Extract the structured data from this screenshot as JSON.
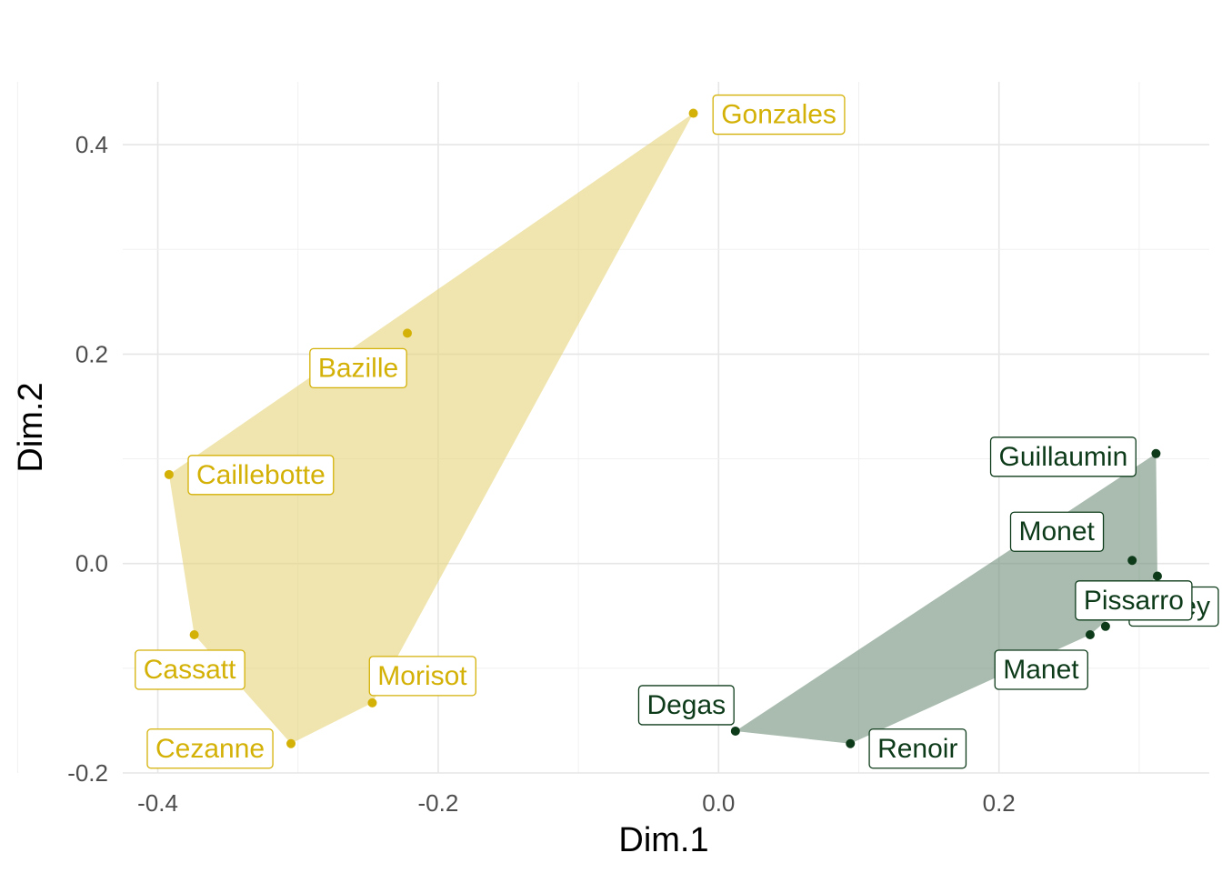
{
  "chart_data": {
    "type": "scatter",
    "title": "",
    "xlabel": "Dim.1",
    "ylabel": "Dim.2",
    "xlim": [
      -0.425,
      0.35
    ],
    "ylim": [
      -0.2,
      0.46
    ],
    "xticks": [
      -0.4,
      -0.2,
      0.0,
      0.2
    ],
    "xtick_labels": [
      "-0.4",
      "-0.2",
      "0.0",
      "0.2"
    ],
    "yticks": [
      -0.2,
      0.0,
      0.2,
      0.4
    ],
    "ytick_labels": [
      "-0.2",
      "0.0",
      "0.2",
      "0.4"
    ],
    "grid": true,
    "legend": "none",
    "colors": {
      "group1": "#d4b106",
      "group2": "#0d3b1a",
      "hull1": "#e6d47a",
      "hull2": "#6f8f7a"
    },
    "series": [
      {
        "color": "#d4b106",
        "hull": [
          "Gonzales",
          "Caillebotte",
          "Cassatt",
          "Cezanne",
          "Morisot"
        ],
        "points": [
          {
            "label": "Gonzales",
            "x": -0.018,
            "y": 0.43
          },
          {
            "label": "Bazille",
            "x": -0.222,
            "y": 0.22
          },
          {
            "label": "Caillebotte",
            "x": -0.392,
            "y": 0.085
          },
          {
            "label": "Cassatt",
            "x": -0.374,
            "y": -0.068
          },
          {
            "label": "Morisot",
            "x": -0.247,
            "y": -0.133
          },
          {
            "label": "Cezanne",
            "x": -0.305,
            "y": -0.172
          }
        ]
      },
      {
        "color": "#0d3b1a",
        "hull": [
          "Guillaumin",
          "Sisley",
          "Manet",
          "Renoir",
          "Degas"
        ],
        "points": [
          {
            "label": "Guillaumin",
            "x": 0.312,
            "y": 0.105
          },
          {
            "label": "Monet",
            "x": 0.295,
            "y": 0.003
          },
          {
            "label": "Sisley",
            "x": 0.313,
            "y": -0.012
          },
          {
            "label": "Pissarro",
            "x": 0.276,
            "y": -0.06
          },
          {
            "label": "Manet",
            "x": 0.265,
            "y": -0.068
          },
          {
            "label": "Degas",
            "x": 0.012,
            "y": -0.16
          },
          {
            "label": "Renoir",
            "x": 0.094,
            "y": -0.172
          }
        ]
      }
    ]
  }
}
